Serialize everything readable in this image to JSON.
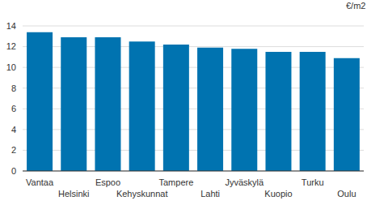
{
  "chart_data": {
    "type": "bar",
    "y_label": "€/m2",
    "categories": [
      "Vantaa",
      "Helsinki",
      "Espoo",
      "Kehyskunnat",
      "Tampere",
      "Lahti",
      "Jyväskylä",
      "Kuopio",
      "Turku",
      "Oulu"
    ],
    "values": [
      13.4,
      12.9,
      12.9,
      12.5,
      12.2,
      11.9,
      11.8,
      11.5,
      11.5,
      10.9
    ],
    "color": "#0073b0",
    "ylim": [
      0,
      14
    ],
    "yticks": [
      0,
      2,
      4,
      6,
      8,
      10,
      12,
      14
    ],
    "grid": true
  }
}
